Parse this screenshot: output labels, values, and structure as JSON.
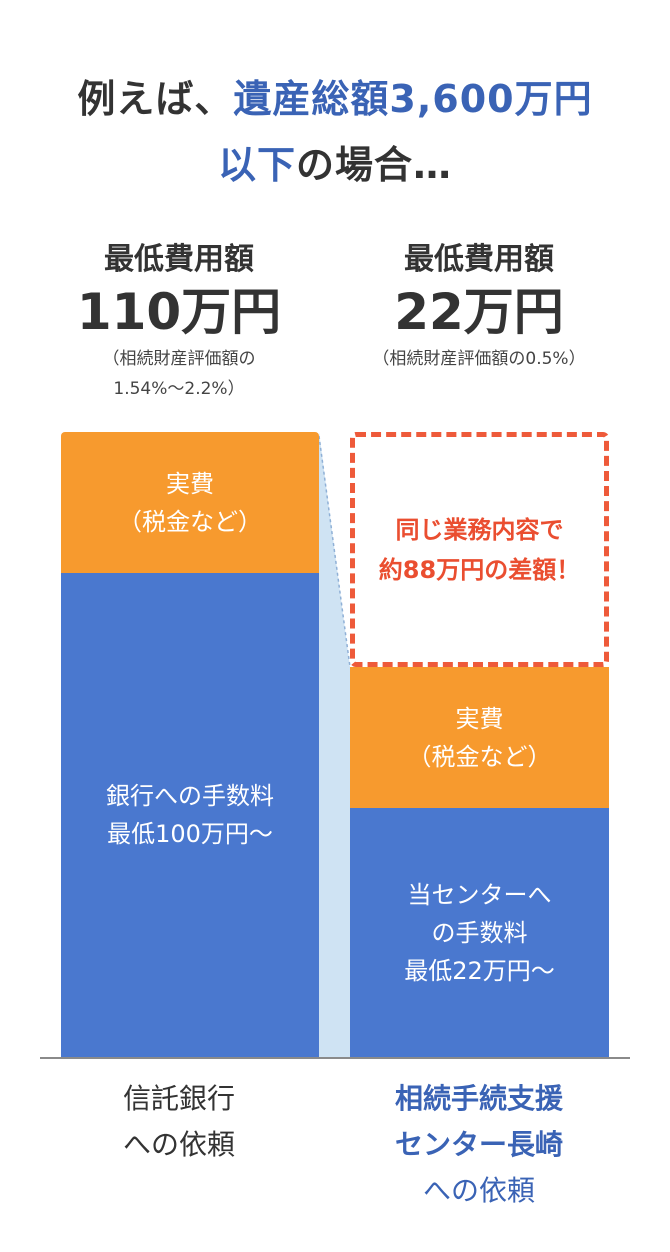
{
  "headline": {
    "line1_prefix": "例えば、",
    "line1_highlight": "遺産総額3,600万円",
    "line2_highlight": "以下",
    "line2_suffix": "の場合…"
  },
  "left_column": {
    "label": "最低費用額",
    "amount": "110万円",
    "note_line1": "（相続財産評価額の",
    "note_line2": "1.54%〜2.2%）",
    "category_line1": "信託銀行",
    "category_line2": "への依頼"
  },
  "right_column": {
    "label": "最低費用額",
    "amount": "22万円",
    "note_line1": "（相続財産評価額の0.5%）",
    "category_line1": "相続手続支援",
    "category_line2": "センター長崎",
    "category_line3": "への依頼"
  },
  "callout": {
    "text": "同じ業務内容で\n約88万円の差額！",
    "color": "#ee5a3a"
  },
  "colors": {
    "fee_blue": "#4a78cf",
    "expense_orange": "#f79a2e",
    "connector": "#cfe3f3",
    "highlight_text": "#3a63b5"
  },
  "chart_data": {
    "type": "bar",
    "stacked": true,
    "categories": [
      "信託銀行への依頼",
      "相続手続支援センター長崎への依頼"
    ],
    "unit": "万円",
    "series": [
      {
        "name": "",
        "labels": [
          "銀行への手数料\n最低100万円〜",
          "当センターへ\nの手数料\n最低22万円〜"
        ],
        "values": [
          100,
          22
        ],
        "color": "#4a78cf"
      },
      {
        "name": "",
        "labels": [
          "実費\n（税金など）",
          "実費\n（税金など）"
        ],
        "values": [
          null,
          null
        ],
        "color": "#f79a2e"
      }
    ],
    "totals": [
      110,
      22
    ],
    "difference": 88
  }
}
